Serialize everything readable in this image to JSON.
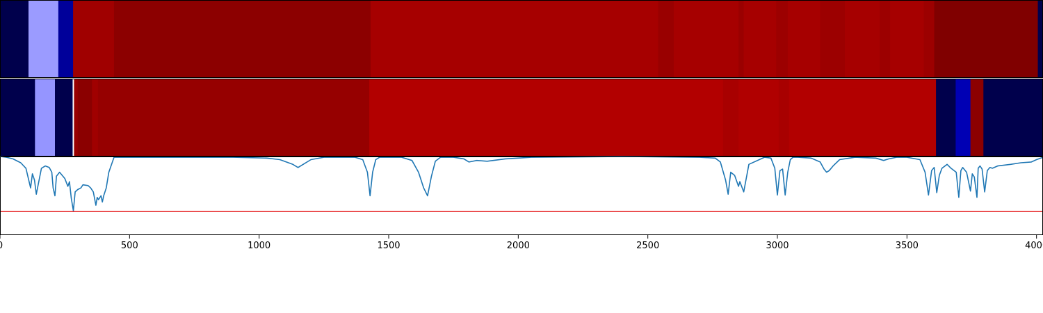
{
  "chart_data": [
    {
      "type": "heatmap",
      "xlim": [
        0,
        4000
      ],
      "colormap": "seismic",
      "bands": [
        {
          "x0": 0,
          "x1": 110,
          "color": "#00004c"
        },
        {
          "x0": 110,
          "x1": 225,
          "color": "#9b9bff"
        },
        {
          "x0": 225,
          "x1": 282,
          "color": "#00009a"
        },
        {
          "x0": 282,
          "x1": 440,
          "color": "#a00000"
        },
        {
          "x0": 440,
          "x1": 1430,
          "color": "#8c0000"
        },
        {
          "x0": 1430,
          "x1": 2540,
          "color": "#a60000"
        },
        {
          "x0": 2540,
          "x1": 2600,
          "color": "#990000"
        },
        {
          "x0": 2600,
          "x1": 2850,
          "color": "#a60000"
        },
        {
          "x0": 2850,
          "x1": 2870,
          "color": "#9a0000"
        },
        {
          "x0": 2870,
          "x1": 2995,
          "color": "#a60000"
        },
        {
          "x0": 2995,
          "x1": 3040,
          "color": "#9c0000"
        },
        {
          "x0": 3040,
          "x1": 3165,
          "color": "#a60000"
        },
        {
          "x0": 3165,
          "x1": 3260,
          "color": "#9c0000"
        },
        {
          "x0": 3260,
          "x1": 3395,
          "color": "#a60000"
        },
        {
          "x0": 3395,
          "x1": 3435,
          "color": "#9c0000"
        },
        {
          "x0": 3435,
          "x1": 3565,
          "color": "#a60000"
        },
        {
          "x0": 3565,
          "x1": 3605,
          "color": "#9c0000"
        },
        {
          "x0": 3605,
          "x1": 4005,
          "color": "#800000"
        },
        {
          "x0": 4005,
          "x1": 4025,
          "color": "#00004c"
        }
      ]
    },
    {
      "type": "heatmap",
      "xlim": [
        0,
        4000
      ],
      "colormap": "seismic",
      "marker_x": 283,
      "bands": [
        {
          "x0": 0,
          "x1": 135,
          "color": "#00004c"
        },
        {
          "x0": 135,
          "x1": 212,
          "color": "#9595ff"
        },
        {
          "x0": 212,
          "x1": 283,
          "color": "#00004c"
        },
        {
          "x0": 283,
          "x1": 300,
          "color": "#990000"
        },
        {
          "x0": 300,
          "x1": 355,
          "color": "#8b0000"
        },
        {
          "x0": 355,
          "x1": 378,
          "color": "#a00000"
        },
        {
          "x0": 378,
          "x1": 1425,
          "color": "#960000"
        },
        {
          "x0": 1425,
          "x1": 2790,
          "color": "#b20000"
        },
        {
          "x0": 2790,
          "x1": 2850,
          "color": "#a80000"
        },
        {
          "x0": 2850,
          "x1": 3005,
          "color": "#b00000"
        },
        {
          "x0": 3005,
          "x1": 3045,
          "color": "#a80000"
        },
        {
          "x0": 3045,
          "x1": 3612,
          "color": "#b20000"
        },
        {
          "x0": 3612,
          "x1": 3688,
          "color": "#00004c"
        },
        {
          "x0": 3688,
          "x1": 3745,
          "color": "#0000b4"
        },
        {
          "x0": 3745,
          "x1": 3795,
          "color": "#8c0000"
        },
        {
          "x0": 3795,
          "x1": 4025,
          "color": "#00004c"
        }
      ]
    },
    {
      "type": "line",
      "xlim": [
        0,
        4025
      ],
      "ylim": [
        0,
        1
      ],
      "xticks": [
        "0",
        "500",
        "1000",
        "1500",
        "2000",
        "2500",
        "3000",
        "3500",
        "4000"
      ],
      "series_color": "#1f77b4",
      "threshold": {
        "y": 0.3,
        "color": "#e41a1c"
      },
      "x": [
        0,
        25,
        50,
        80,
        100,
        118,
        125,
        133,
        140,
        160,
        175,
        190,
        200,
        205,
        212,
        218,
        230,
        250,
        262,
        268,
        275,
        283,
        290,
        300,
        312,
        320,
        340,
        350,
        360,
        370,
        375,
        380,
        390,
        395,
        400,
        410,
        420,
        440,
        900,
        1030,
        1080,
        1130,
        1150,
        1170,
        1200,
        1250,
        1300,
        1370,
        1400,
        1418,
        1428,
        1438,
        1450,
        1465,
        1480,
        1550,
        1590,
        1615,
        1635,
        1650,
        1665,
        1680,
        1700,
        1750,
        1790,
        1810,
        1840,
        1880,
        1950,
        2050,
        2400,
        2700,
        2760,
        2780,
        2800,
        2810,
        2820,
        2835,
        2850,
        2855,
        2870,
        2890,
        2950,
        2975,
        2990,
        3000,
        3010,
        3020,
        3030,
        3040,
        3050,
        3060,
        3080,
        3130,
        3165,
        3180,
        3190,
        3200,
        3215,
        3240,
        3300,
        3380,
        3410,
        3430,
        3460,
        3500,
        3550,
        3570,
        3583,
        3595,
        3605,
        3615,
        3625,
        3635,
        3655,
        3670,
        3690,
        3700,
        3708,
        3715,
        3730,
        3745,
        3752,
        3760,
        3770,
        3775,
        3782,
        3790,
        3800,
        3810,
        3820,
        3830,
        3850,
        3900,
        3940,
        3980,
        4000,
        4025
      ]
    }
  ]
}
